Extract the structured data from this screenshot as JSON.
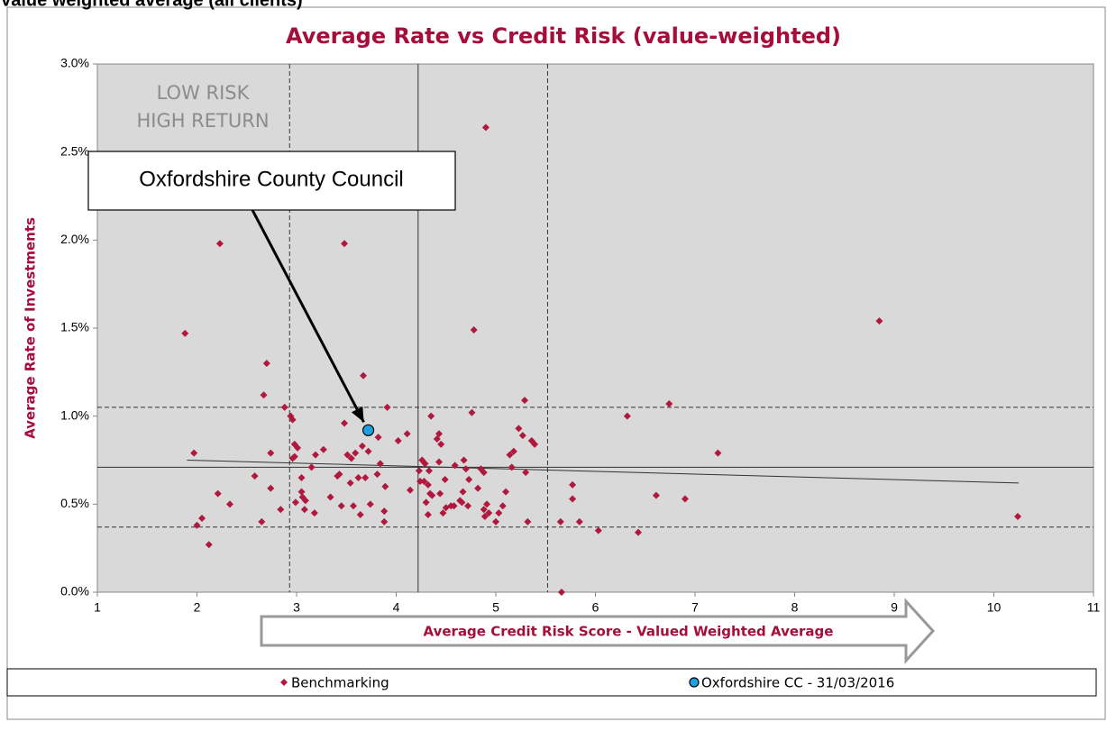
{
  "header": "Value weighted average (all clients)",
  "chart_data": {
    "type": "scatter",
    "title": "Average Rate vs Credit Risk (value-weighted)",
    "x_label": "Average Credit Risk Score - Valued Weighted Average",
    "y_label": "Average Rate of Investments",
    "xlim": [
      1,
      11
    ],
    "xticks": [
      1,
      2,
      3,
      4,
      5,
      6,
      7,
      8,
      9,
      10,
      11
    ],
    "ylim": [
      0,
      3.0
    ],
    "yticks": [
      {
        "value": 0,
        "label": "0.0%"
      },
      {
        "value": 0.5,
        "label": "0.5%"
      },
      {
        "value": 1.0,
        "label": "1.0%"
      },
      {
        "value": 1.5,
        "label": "1.5%"
      },
      {
        "value": 2.0,
        "label": "2.0%"
      },
      {
        "value": 2.5,
        "label": "2.5%"
      },
      {
        "value": 3.0,
        "label": "3.0%"
      }
    ],
    "vlines": [
      2.93,
      4.22,
      5.52
    ],
    "hlines": [
      1.05,
      0.71,
      0.37
    ],
    "trendline": {
      "x": [
        1.9,
        10.25
      ],
      "y": [
        0.75,
        0.62
      ]
    },
    "quadrant_label": [
      "LOW RISK",
      "HIGH RETURN"
    ],
    "annotation": "Oxfordshire County Council",
    "series": [
      {
        "name": "Benchmarking",
        "color": "#b0183d",
        "marker": "diamond",
        "x": [
          1.88,
          1.97,
          2.0,
          2.05,
          2.12,
          2.21,
          2.23,
          2.33,
          2.58,
          2.65,
          2.67,
          2.7,
          2.74,
          2.74,
          2.84,
          2.88,
          2.94,
          2.96,
          2.96,
          2.98,
          2.98,
          3.01,
          2.99,
          3.05,
          3.05,
          3.06,
          3.08,
          3.09,
          3.15,
          3.19,
          3.18,
          3.27,
          3.34,
          3.41,
          3.43,
          3.45,
          3.48,
          3.48,
          3.51,
          3.54,
          3.55,
          3.57,
          3.59,
          3.62,
          3.64,
          3.66,
          3.67,
          3.69,
          3.72,
          3.74,
          3.81,
          3.82,
          3.84,
          3.88,
          3.88,
          3.89,
          3.91,
          4.02,
          4.11,
          4.14,
          4.23,
          4.24,
          4.26,
          4.28,
          4.29,
          4.3,
          4.32,
          4.32,
          4.33,
          4.34,
          4.35,
          4.36,
          4.41,
          4.43,
          4.43,
          4.44,
          4.45,
          4.47,
          4.49,
          4.5,
          4.55,
          4.58,
          4.59,
          4.64,
          4.66,
          4.67,
          4.68,
          4.7,
          4.72,
          4.73,
          4.76,
          4.78,
          4.82,
          4.85,
          4.88,
          4.88,
          4.89,
          4.9,
          4.91,
          4.93,
          5.0,
          5.03,
          5.07,
          5.1,
          5.14,
          5.16,
          5.18,
          5.23,
          5.27,
          5.29,
          5.3,
          5.32,
          5.36,
          5.39,
          5.65,
          5.66,
          5.77,
          5.77,
          5.84,
          6.03,
          6.32,
          6.43,
          6.61,
          6.74,
          6.9,
          7.23,
          8.85,
          10.24
        ],
        "y": [
          1.47,
          0.79,
          0.38,
          0.42,
          0.27,
          0.56,
          1.98,
          0.5,
          0.66,
          0.4,
          1.12,
          1.3,
          0.79,
          0.59,
          0.47,
          1.05,
          1.0,
          0.98,
          0.76,
          0.84,
          0.77,
          0.82,
          0.51,
          0.65,
          0.57,
          0.54,
          0.47,
          0.52,
          0.71,
          0.78,
          0.45,
          0.81,
          0.54,
          0.66,
          0.67,
          0.49,
          0.96,
          1.98,
          0.78,
          0.62,
          0.76,
          0.49,
          0.79,
          0.65,
          0.44,
          0.83,
          1.23,
          0.65,
          0.8,
          0.5,
          0.67,
          0.88,
          0.73,
          0.46,
          0.4,
          0.6,
          1.05,
          0.86,
          0.9,
          0.58,
          0.69,
          0.63,
          0.75,
          0.63,
          0.73,
          0.51,
          0.44,
          0.61,
          0.69,
          0.56,
          1.0,
          0.55,
          0.87,
          0.9,
          0.74,
          0.56,
          0.84,
          0.45,
          0.64,
          0.48,
          0.49,
          0.49,
          0.72,
          0.52,
          0.51,
          0.57,
          0.75,
          0.7,
          0.49,
          0.64,
          1.02,
          1.49,
          0.59,
          0.7,
          0.47,
          0.68,
          0.43,
          2.64,
          0.5,
          0.45,
          0.4,
          0.45,
          0.49,
          0.57,
          0.78,
          0.71,
          0.8,
          0.93,
          0.89,
          1.09,
          0.68,
          0.4,
          0.86,
          0.84,
          0.4,
          0.0,
          0.61,
          0.53,
          0.4,
          0.35,
          1.0,
          0.34,
          0.55,
          1.07,
          0.53,
          0.79,
          1.54,
          0.43
        ]
      },
      {
        "name": "Oxfordshire CC - 31/03/2016",
        "color": "#1ba1e2",
        "marker": "circle",
        "x": [
          3.72
        ],
        "y": [
          0.92
        ]
      }
    ]
  }
}
